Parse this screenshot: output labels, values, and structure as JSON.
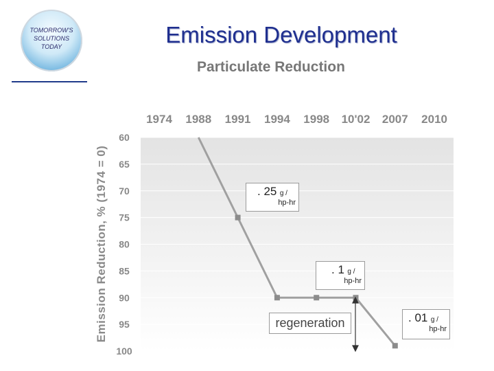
{
  "logo": {
    "line1": "TOMORROW'S",
    "line2": "SOLUTIONS",
    "line3": "TODAY"
  },
  "header": {
    "title": "Emission Development",
    "subtitle": "Particulate Reduction"
  },
  "colors": {
    "title": "#1f2f8f",
    "line": "#a0a0a0",
    "marker": "#8c8c8c",
    "plot_bg_top": "#e6e6e6",
    "plot_bg_bottom": "#ffffff"
  },
  "chart_data": {
    "type": "line",
    "title": "Particulate Reduction",
    "ylabel": "Emission Reduction, % (1974 = 0)",
    "x_labels": [
      "1974",
      "1988",
      "1991",
      "1994",
      "1998",
      "10'02",
      "2007",
      "2010"
    ],
    "y_ticks": [
      60,
      65,
      70,
      75,
      80,
      85,
      90,
      95,
      100
    ],
    "ylim": [
      60,
      100
    ],
    "y_inverted": true,
    "x_position": "top",
    "grid": true,
    "series": [
      {
        "points": [
          {
            "x": "1988",
            "y": 60
          },
          {
            "x": "1991",
            "y": 75
          },
          {
            "x": "1994",
            "y": 90
          },
          {
            "x": "1998",
            "y": 90
          },
          {
            "x": "10'02",
            "y": 90
          },
          {
            "x": "2007",
            "y": 99
          }
        ],
        "markers": [
          "1991",
          "1994",
          "1998",
          "10'02",
          "2007"
        ]
      }
    ],
    "annotations": [
      {
        "value": ". 25",
        "unit": "g /",
        "sub": "hp-hr"
      },
      {
        "value": ". 1",
        "unit": "g /",
        "sub": "hp-hr"
      },
      {
        "value": ". 01",
        "unit": "g /",
        "sub": "hp-hr"
      },
      {
        "value": "regeneration"
      }
    ]
  }
}
